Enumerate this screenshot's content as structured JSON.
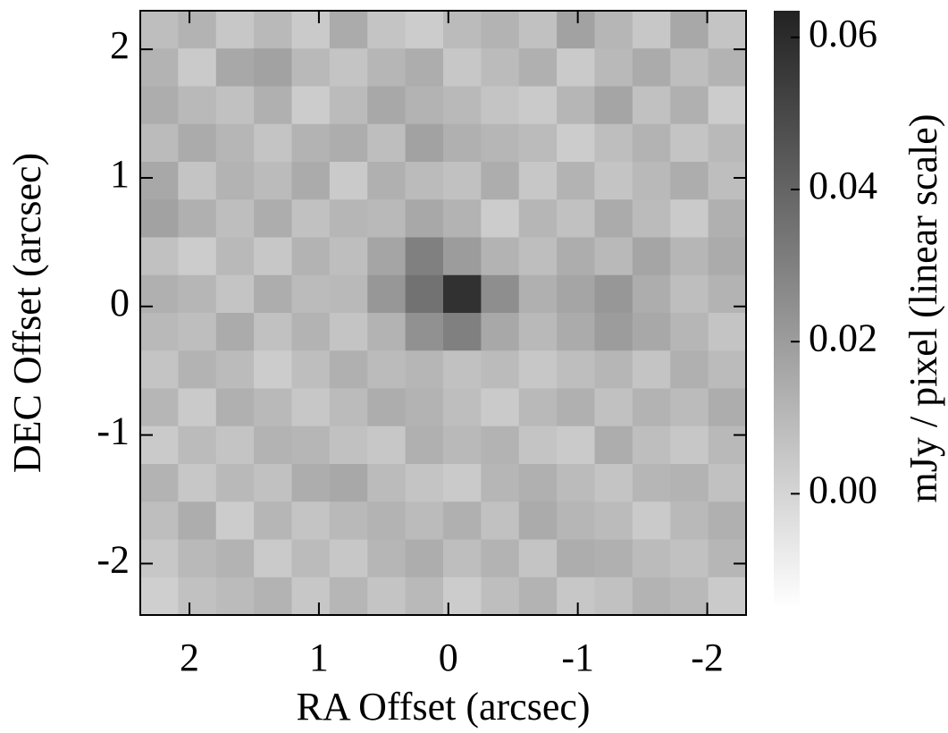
{
  "chart_data": {
    "type": "image",
    "xlabel": "RA Offset (arcsec)",
    "ylabel": "DEC Offset (arcsec)",
    "colorbar_label": "mJy / pixel (linear scale)",
    "xlim": [
      2.38,
      -2.3
    ],
    "ylim": [
      -2.4,
      2.3
    ],
    "xticks": [
      2,
      1,
      0,
      -1,
      -2
    ],
    "yticks": [
      2,
      1,
      0,
      -1,
      -2
    ],
    "clim": [
      -0.015,
      0.0635
    ],
    "cticks": [
      {
        "value": 0,
        "label": "0.00"
      },
      0.02,
      0.04,
      0.06
    ],
    "z": [
      [
        0.008,
        0.012,
        0.005,
        0.01,
        0.004,
        0.015,
        0.006,
        0.003,
        0.009,
        0.012,
        0.007,
        0.018,
        0.011,
        0.005,
        0.016,
        0.006
      ],
      [
        0.012,
        0.004,
        0.016,
        0.018,
        0.01,
        0.006,
        0.011,
        0.014,
        0.005,
        0.009,
        0.013,
        0.004,
        0.01,
        0.015,
        0.008,
        0.012
      ],
      [
        0.014,
        0.01,
        0.007,
        0.013,
        0.003,
        0.009,
        0.016,
        0.012,
        0.01,
        0.006,
        0.004,
        0.011,
        0.017,
        0.007,
        0.013,
        0.003
      ],
      [
        0.009,
        0.015,
        0.011,
        0.006,
        0.012,
        0.014,
        0.008,
        0.018,
        0.013,
        0.011,
        0.009,
        0.003,
        0.008,
        0.012,
        0.006,
        0.01
      ],
      [
        0.016,
        0.006,
        0.012,
        0.009,
        0.015,
        0.004,
        0.013,
        0.009,
        0.007,
        0.014,
        0.005,
        0.012,
        0.006,
        0.01,
        0.014,
        0.008
      ],
      [
        0.018,
        0.013,
        0.008,
        0.014,
        0.007,
        0.011,
        0.01,
        0.016,
        0.012,
        0.003,
        0.011,
        0.007,
        0.015,
        0.009,
        0.004,
        0.013
      ],
      [
        0.007,
        0.003,
        0.01,
        0.005,
        0.012,
        0.008,
        0.017,
        0.03,
        0.02,
        0.012,
        0.008,
        0.014,
        0.01,
        0.017,
        0.011,
        0.015
      ],
      [
        0.013,
        0.011,
        0.006,
        0.014,
        0.009,
        0.01,
        0.022,
        0.035,
        0.058,
        0.025,
        0.013,
        0.017,
        0.022,
        0.014,
        0.008,
        0.012
      ],
      [
        0.01,
        0.008,
        0.015,
        0.007,
        0.012,
        0.006,
        0.012,
        0.024,
        0.03,
        0.016,
        0.01,
        0.015,
        0.02,
        0.016,
        0.011,
        0.006
      ],
      [
        0.006,
        0.012,
        0.009,
        0.003,
        0.008,
        0.013,
        0.009,
        0.011,
        0.007,
        0.009,
        0.005,
        0.008,
        0.011,
        0.006,
        0.013,
        0.009
      ],
      [
        0.011,
        0.004,
        0.013,
        0.01,
        0.005,
        0.009,
        0.014,
        0.012,
        0.008,
        0.004,
        0.01,
        0.013,
        0.007,
        0.012,
        0.009,
        0.014
      ],
      [
        0.004,
        0.009,
        0.006,
        0.012,
        0.011,
        0.007,
        0.005,
        0.013,
        0.01,
        0.012,
        0.006,
        0.004,
        0.014,
        0.008,
        0.005,
        0.01
      ],
      [
        0.012,
        0.005,
        0.01,
        0.007,
        0.014,
        0.016,
        0.009,
        0.006,
        0.004,
        0.011,
        0.013,
        0.009,
        0.006,
        0.011,
        0.012,
        0.007
      ],
      [
        0.008,
        0.014,
        0.003,
        0.011,
        0.006,
        0.01,
        0.012,
        0.009,
        0.013,
        0.007,
        0.015,
        0.011,
        0.009,
        0.004,
        0.01,
        0.013
      ],
      [
        0.005,
        0.01,
        0.012,
        0.004,
        0.009,
        0.005,
        0.011,
        0.014,
        0.008,
        0.012,
        0.006,
        0.014,
        0.013,
        0.009,
        0.007,
        0.011
      ],
      [
        0.002,
        0.007,
        0.009,
        0.012,
        0.005,
        0.011,
        0.006,
        0.01,
        0.003,
        0.008,
        0.012,
        0.005,
        0.007,
        0.012,
        0.01,
        0.004
      ]
    ]
  }
}
